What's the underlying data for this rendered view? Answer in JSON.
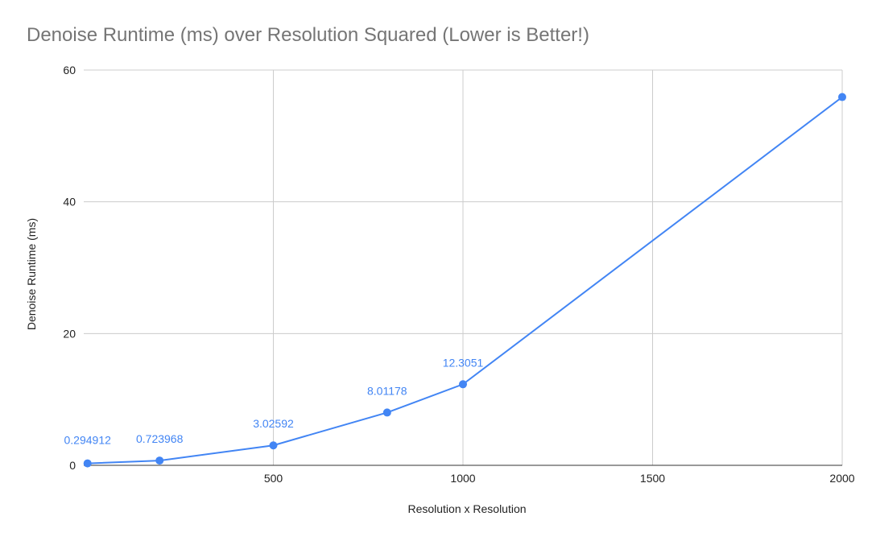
{
  "chart_data": {
    "type": "line",
    "title": "Denoise Runtime (ms) over Resolution Squared (Lower is Better!)",
    "xlabel": "Resolution x Resolution",
    "ylabel": "Denoise Runtime (ms)",
    "xlim": [
      0,
      2000
    ],
    "ylim": [
      0,
      60
    ],
    "xticks": [
      "500",
      "1000",
      "1500",
      "2000"
    ],
    "yticks": [
      "0",
      "20",
      "40",
      "60"
    ],
    "grid": true,
    "legend": "none",
    "series": [
      {
        "x": [
          10,
          200,
          500,
          800,
          1000,
          2000
        ],
        "y": [
          0.294912,
          0.723968,
          3.02592,
          8.01178,
          12.3051,
          55.9
        ],
        "data_labels": [
          "0.294912",
          "0.723968",
          "3.02592",
          "8.01178",
          "12.3051",
          ""
        ],
        "color": "#4285f4"
      }
    ]
  }
}
